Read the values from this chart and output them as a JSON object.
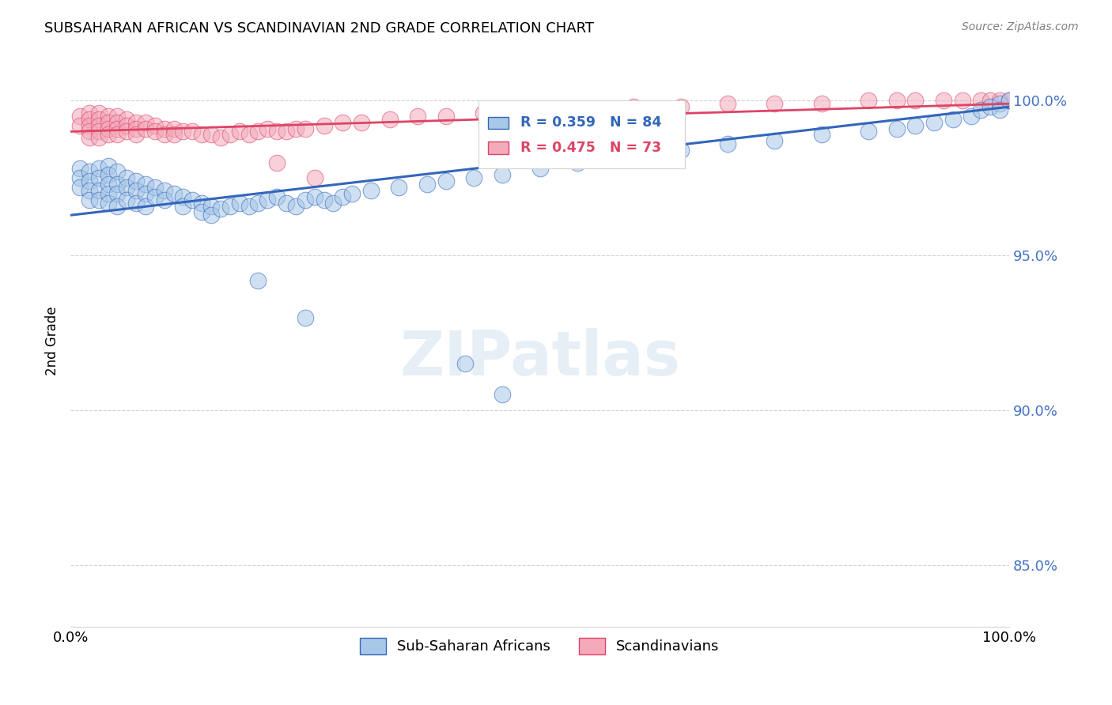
{
  "title": "SUBSAHARAN AFRICAN VS SCANDINAVIAN 2ND GRADE CORRELATION CHART",
  "source": "Source: ZipAtlas.com",
  "ylabel": "2nd Grade",
  "xlim": [
    0.0,
    1.0
  ],
  "ylim": [
    0.83,
    1.015
  ],
  "yticks": [
    0.85,
    0.9,
    0.95,
    1.0
  ],
  "ytick_labels": [
    "85.0%",
    "90.0%",
    "95.0%",
    "100.0%"
  ],
  "xticks": [
    0.0,
    0.2,
    0.4,
    0.6,
    0.8,
    1.0
  ],
  "xtick_labels": [
    "0.0%",
    "",
    "",
    "",
    "",
    "100.0%"
  ],
  "legend_blue_label": "Sub-Saharan Africans",
  "legend_pink_label": "Scandinavians",
  "blue_R": 0.359,
  "blue_N": 84,
  "pink_R": 0.475,
  "pink_N": 73,
  "blue_color": "#A8C8E8",
  "pink_color": "#F4AABB",
  "blue_line_color": "#3366BB",
  "pink_line_color": "#DD4466",
  "watermark": "ZIPatlas",
  "blue_x": [
    0.01,
    0.01,
    0.01,
    0.02,
    0.02,
    0.02,
    0.02,
    0.03,
    0.03,
    0.03,
    0.03,
    0.04,
    0.04,
    0.04,
    0.04,
    0.04,
    0.05,
    0.05,
    0.05,
    0.05,
    0.06,
    0.06,
    0.06,
    0.07,
    0.07,
    0.07,
    0.08,
    0.08,
    0.08,
    0.09,
    0.09,
    0.1,
    0.1,
    0.11,
    0.12,
    0.12,
    0.13,
    0.14,
    0.14,
    0.15,
    0.15,
    0.16,
    0.17,
    0.18,
    0.19,
    0.2,
    0.21,
    0.22,
    0.23,
    0.24,
    0.25,
    0.26,
    0.27,
    0.28,
    0.29,
    0.3,
    0.32,
    0.35,
    0.38,
    0.4,
    0.43,
    0.46,
    0.5,
    0.54,
    0.6,
    0.65,
    0.7,
    0.75,
    0.8,
    0.85,
    0.88,
    0.9,
    0.92,
    0.94,
    0.96,
    0.97,
    0.98,
    0.99,
    0.99,
    1.0,
    0.2,
    0.25,
    0.42,
    0.46
  ],
  "blue_y": [
    0.978,
    0.975,
    0.972,
    0.977,
    0.974,
    0.971,
    0.968,
    0.978,
    0.975,
    0.971,
    0.968,
    0.979,
    0.976,
    0.973,
    0.97,
    0.967,
    0.977,
    0.973,
    0.97,
    0.966,
    0.975,
    0.972,
    0.968,
    0.974,
    0.971,
    0.967,
    0.973,
    0.97,
    0.966,
    0.972,
    0.969,
    0.971,
    0.968,
    0.97,
    0.969,
    0.966,
    0.968,
    0.967,
    0.964,
    0.966,
    0.963,
    0.965,
    0.966,
    0.967,
    0.966,
    0.967,
    0.968,
    0.969,
    0.967,
    0.966,
    0.968,
    0.969,
    0.968,
    0.967,
    0.969,
    0.97,
    0.971,
    0.972,
    0.973,
    0.974,
    0.975,
    0.976,
    0.978,
    0.98,
    0.982,
    0.984,
    0.986,
    0.987,
    0.989,
    0.99,
    0.991,
    0.992,
    0.993,
    0.994,
    0.995,
    0.997,
    0.998,
    0.999,
    0.997,
    1.0,
    0.942,
    0.93,
    0.915,
    0.905
  ],
  "pink_x": [
    0.01,
    0.01,
    0.02,
    0.02,
    0.02,
    0.02,
    0.02,
    0.03,
    0.03,
    0.03,
    0.03,
    0.03,
    0.04,
    0.04,
    0.04,
    0.04,
    0.05,
    0.05,
    0.05,
    0.05,
    0.06,
    0.06,
    0.06,
    0.07,
    0.07,
    0.07,
    0.08,
    0.08,
    0.09,
    0.09,
    0.1,
    0.1,
    0.11,
    0.11,
    0.12,
    0.13,
    0.14,
    0.15,
    0.16,
    0.17,
    0.18,
    0.19,
    0.2,
    0.21,
    0.22,
    0.23,
    0.24,
    0.25,
    0.27,
    0.29,
    0.31,
    0.34,
    0.37,
    0.4,
    0.44,
    0.5,
    0.55,
    0.6,
    0.65,
    0.7,
    0.75,
    0.8,
    0.85,
    0.88,
    0.9,
    0.93,
    0.95,
    0.97,
    0.98,
    0.99,
    1.0,
    0.22,
    0.26
  ],
  "pink_y": [
    0.995,
    0.992,
    0.996,
    0.994,
    0.992,
    0.99,
    0.988,
    0.996,
    0.994,
    0.992,
    0.99,
    0.988,
    0.995,
    0.993,
    0.991,
    0.989,
    0.995,
    0.993,
    0.991,
    0.989,
    0.994,
    0.992,
    0.99,
    0.993,
    0.991,
    0.989,
    0.993,
    0.991,
    0.992,
    0.99,
    0.991,
    0.989,
    0.991,
    0.989,
    0.99,
    0.99,
    0.989,
    0.989,
    0.988,
    0.989,
    0.99,
    0.989,
    0.99,
    0.991,
    0.99,
    0.99,
    0.991,
    0.991,
    0.992,
    0.993,
    0.993,
    0.994,
    0.995,
    0.995,
    0.996,
    0.997,
    0.997,
    0.998,
    0.998,
    0.999,
    0.999,
    0.999,
    1.0,
    1.0,
    1.0,
    1.0,
    1.0,
    1.0,
    1.0,
    1.0,
    1.0,
    0.98,
    0.975
  ]
}
